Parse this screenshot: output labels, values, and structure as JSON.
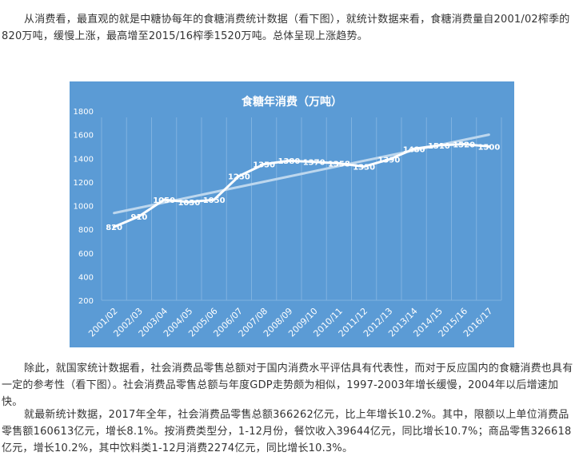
{
  "paragraphs": {
    "p1": "从消费看，最直观的就是中糖协每年的食糖消费统计数据（看下图），就统计数据来看，食糖消费量自2001/02榨季的820万吨，缓慢上涨，最高增至2015/16榨季1520万吨。总体呈现上涨趋势。",
    "p2": "除此，就国家统计数据看，社会消费品零售总额对于国内消费水平评估具有代表性，而对于反应国内的食糖消费也具有一定的参考性（看下图）。社会消费品零售总额与年度GDP走势颇为相似，1997-2003年增长缓慢，2004年以后增速加快。",
    "p3": "就最新统计数据，2017年全年，社会消费品零售总额366262亿元，比上年增长10.2%。其中，限额以上单位消费品零售额160613亿元，增长8.1%。按消费类型分，1-12月份，餐饮收入39644亿元，同比增长10.7%；商品零售326618亿元，增长10.2%，其中饮料类1-12月消费2274亿元，同比增长10.3%。"
  },
  "colors": {
    "chart_background": "#5b9bd5",
    "line": "#ffffff",
    "trendline": "#bdd7ee",
    "text": "#ffffff",
    "grid": "#7fb2e0"
  },
  "chart_data": {
    "type": "line",
    "title": "食糖年消费（万吨）",
    "xlabel": "",
    "ylabel": "",
    "categories": [
      "2001/02",
      "2002/03",
      "2003/04",
      "2004/05",
      "2005/06",
      "2006/07",
      "2007/08",
      "2008/09",
      "2009/10",
      "2010/11",
      "2011/12",
      "2012/13",
      "2013/14",
      "2014/15",
      "2015/16",
      "2016/17"
    ],
    "series": [
      {
        "values": [
          820,
          910,
          1050,
          1030,
          1050,
          1250,
          1350,
          1380,
          1370,
          1358,
          1330,
          1390,
          1480,
          1510,
          1520,
          1500
        ]
      }
    ],
    "data_labels": [
      "820",
      "910",
      "1050",
      "1030",
      "1050",
      "1250",
      "1350",
      "1380",
      "1370",
      "1358",
      "1330",
      "1390",
      "1480",
      "1510",
      "1520",
      "1500"
    ],
    "trendline": "linear",
    "ylim": [
      200,
      1800
    ],
    "yticks": [
      200,
      400,
      600,
      800,
      1000,
      1200,
      1400,
      1600,
      1800
    ],
    "grid": "vertical",
    "legend": "none"
  }
}
